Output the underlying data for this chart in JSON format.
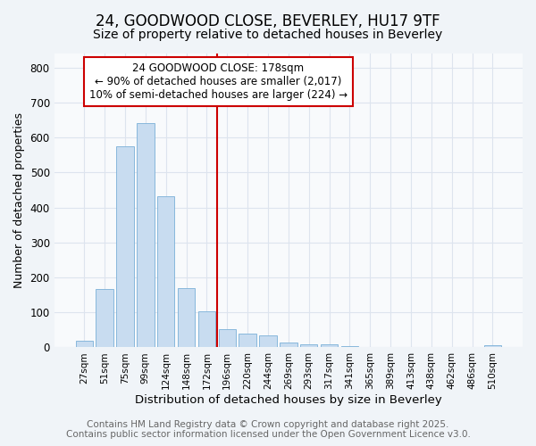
{
  "title_line1": "24, GOODWOOD CLOSE, BEVERLEY, HU17 9TF",
  "title_line2": "Size of property relative to detached houses in Beverley",
  "xlabel": "Distribution of detached houses by size in Beverley",
  "ylabel": "Number of detached properties",
  "categories": [
    "27sqm",
    "51sqm",
    "75sqm",
    "99sqm",
    "124sqm",
    "148sqm",
    "172sqm",
    "196sqm",
    "220sqm",
    "244sqm",
    "269sqm",
    "293sqm",
    "317sqm",
    "341sqm",
    "365sqm",
    "389sqm",
    "413sqm",
    "438sqm",
    "462sqm",
    "486sqm",
    "510sqm"
  ],
  "values": [
    20,
    168,
    575,
    642,
    432,
    170,
    102,
    52,
    40,
    35,
    14,
    10,
    8,
    3,
    2,
    1,
    1,
    0,
    0,
    0,
    5
  ],
  "bar_color": "#c8dcf0",
  "bar_edge_color": "#7ab0d8",
  "vline_x": 6.5,
  "vline_color": "#cc0000",
  "annotation_title": "24 GOODWOOD CLOSE: 178sqm",
  "annotation_line2": "← 90% of detached houses are smaller (2,017)",
  "annotation_line3": "10% of semi-detached houses are larger (224) →",
  "ylim": [
    0,
    840
  ],
  "yticks": [
    0,
    100,
    200,
    300,
    400,
    500,
    600,
    700,
    800
  ],
  "footer_line1": "Contains HM Land Registry data © Crown copyright and database right 2025.",
  "footer_line2": "Contains public sector information licensed under the Open Government Licence v3.0.",
  "bg_color": "#f0f4f8",
  "plot_bg_color": "#f8fafc",
  "grid_color": "#dde4ee",
  "title_fontsize": 12,
  "subtitle_fontsize": 10,
  "footer_fontsize": 7.5,
  "annotation_fontsize": 8.5
}
